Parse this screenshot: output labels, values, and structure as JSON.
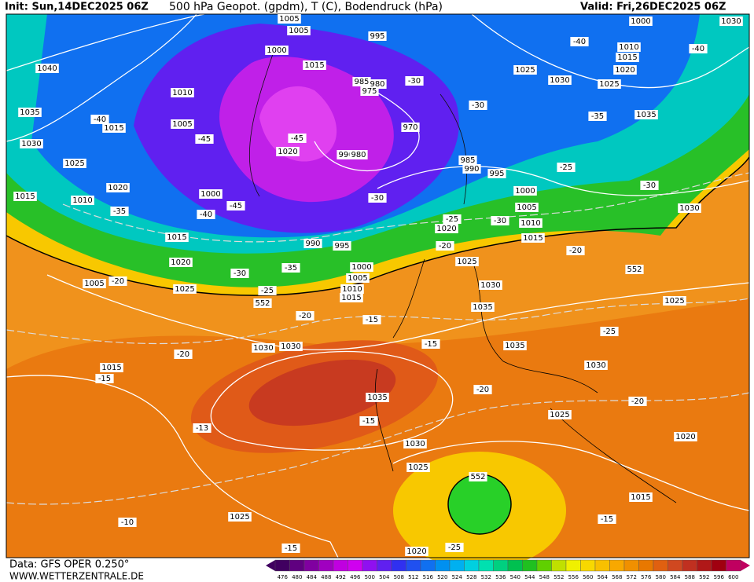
{
  "header": {
    "init": "Init: Sun,14DEC2025 06Z",
    "title": "500 hPa Geopot. (gpdm), T (C), Bodendruck (hPa)",
    "valid": "Valid: Fri,26DEC2025 06Z"
  },
  "footer": {
    "source": "Data: GFS OPER 0.250°",
    "site": "WWW.WETTERZENTRALE.DE"
  },
  "colorbar": {
    "levels": [
      476,
      480,
      484,
      488,
      492,
      496,
      500,
      504,
      508,
      512,
      516,
      520,
      524,
      528,
      532,
      536,
      540,
      544,
      548,
      552,
      556,
      560,
      564,
      568,
      572,
      576,
      580,
      584,
      588,
      592,
      596,
      600
    ],
    "colors": [
      "#400060",
      "#600080",
      "#8000a0",
      "#a000c0",
      "#c000e0",
      "#d000f0",
      "#9010f0",
      "#6020f0",
      "#3030f0",
      "#2050f0",
      "#1070f0",
      "#0090f0",
      "#00b0f0",
      "#00d0e0",
      "#00e0b0",
      "#00d080",
      "#00c050",
      "#20c020",
      "#60d000",
      "#c0e000",
      "#f0f000",
      "#f8d800",
      "#f8c000",
      "#f8a800",
      "#f09000",
      "#e87800",
      "#e06010",
      "#d04820",
      "#c03020",
      "#b01818",
      "#a00010",
      "#c00060"
    ]
  },
  "isobar_labels": [
    "1040",
    "1035",
    "1030",
    "1025",
    "1020",
    "1015",
    "1010",
    "1015",
    "1010",
    "1005",
    "1000",
    "1005",
    "1005",
    "995",
    "1000",
    "1015",
    "985",
    "980",
    "975",
    "970",
    "990",
    "980",
    "1020",
    "995",
    "990",
    "985",
    "1000",
    "1005",
    "1010",
    "1015",
    "1020",
    "990",
    "995",
    "1000",
    "1005",
    "1010",
    "1015",
    "1020",
    "1025",
    "1005",
    "1015",
    "1025",
    "1030",
    "1035",
    "1035",
    "1030",
    "1025",
    "1020",
    "1015",
    "1025",
    "1030",
    "1030",
    "1025",
    "1025",
    "1035",
    "1000",
    "1010",
    "1015",
    "1020",
    "1030",
    "1030",
    "1030",
    "1015",
    "1035",
    "1030",
    "1025",
    "1025",
    "1020",
    "552",
    "552",
    "552"
  ],
  "temperature_labels": [
    "-40",
    "-45",
    "-35",
    "-40",
    "-45",
    "-20",
    "-30",
    "-35",
    "-25",
    "-20",
    "-15",
    "-15",
    "-20",
    "-15",
    "-13",
    "-15",
    "-20",
    "-25",
    "-20",
    "-15",
    "-10",
    "-15",
    "-25",
    "-20",
    "-30",
    "-25",
    "-30",
    "-30",
    "-35",
    "-30",
    "-25",
    "-20",
    "-30",
    "-40",
    "-40",
    "-45"
  ]
}
